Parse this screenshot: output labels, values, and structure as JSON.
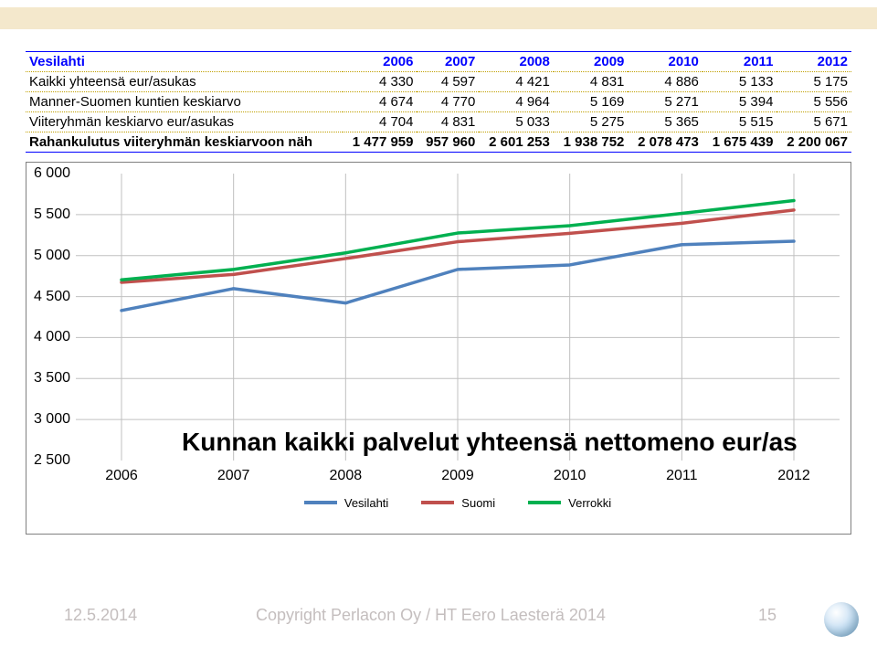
{
  "table": {
    "header_label": "Vesilahti",
    "years": [
      "2006",
      "2007",
      "2008",
      "2009",
      "2010",
      "2011",
      "2012"
    ],
    "rows": [
      {
        "label": "Kaikki yhteensä eur/asukas",
        "vals": [
          "4 330",
          "4 597",
          "4 421",
          "4 831",
          "4 886",
          "5 133",
          "5 175"
        ]
      },
      {
        "label": "Manner-Suomen kuntien keskiarvo",
        "vals": [
          "4 674",
          "4 770",
          "4 964",
          "5 169",
          "5 271",
          "5 394",
          "5 556"
        ]
      },
      {
        "label": "Viiteryhmän keskiarvo eur/asukas",
        "vals": [
          "4 704",
          "4 831",
          "5 033",
          "5 275",
          "5 365",
          "5 515",
          "5 671"
        ]
      },
      {
        "label": "Rahankulutus viiteryhmän keskiarvoon näh",
        "vals": [
          "1 477 959",
          "957 960",
          "2 601 253",
          "1 938 752",
          "2 078 473",
          "1 675 439",
          "2 200 067"
        ]
      }
    ]
  },
  "chart": {
    "type": "line",
    "title": "Kunnan kaikki palvelut yhteensä nettomeno eur/as",
    "title_fontsize": 28,
    "background_color": "#ffffff",
    "border_color": "#808080",
    "xlim": [
      2006,
      2012
    ],
    "xtick_labels": [
      "2006",
      "2007",
      "2008",
      "2009",
      "2010",
      "2011",
      "2012"
    ],
    "ylim": [
      2500,
      6000
    ],
    "ytick_step": 500,
    "ytick_labels": [
      "2 500",
      "3 000",
      "3 500",
      "4 000",
      "4 500",
      "5 000",
      "5 500",
      "6 000"
    ],
    "hgrid_color": "#c0c0c0",
    "vgrid_color": "#c0c0c0",
    "tick_fontsize": 16,
    "line_width": 3.5,
    "series": [
      {
        "name": "Vesilahti",
        "color": "#4f81bd",
        "values": [
          4330,
          4597,
          4421,
          4831,
          4886,
          5133,
          5175
        ]
      },
      {
        "name": "Suomi",
        "color": "#c0504d",
        "values": [
          4674,
          4770,
          4964,
          5169,
          5271,
          5394,
          5556
        ]
      },
      {
        "name": "Verrokki",
        "color": "#00b050",
        "values": [
          4704,
          4831,
          5033,
          5275,
          5365,
          5515,
          5671
        ]
      }
    ],
    "legend_fontsize": 13
  },
  "footer": {
    "date": "12.5.2014",
    "copyright": "Copyright Perlacon Oy / HT Eero Laesterä 2014",
    "page": "15"
  }
}
